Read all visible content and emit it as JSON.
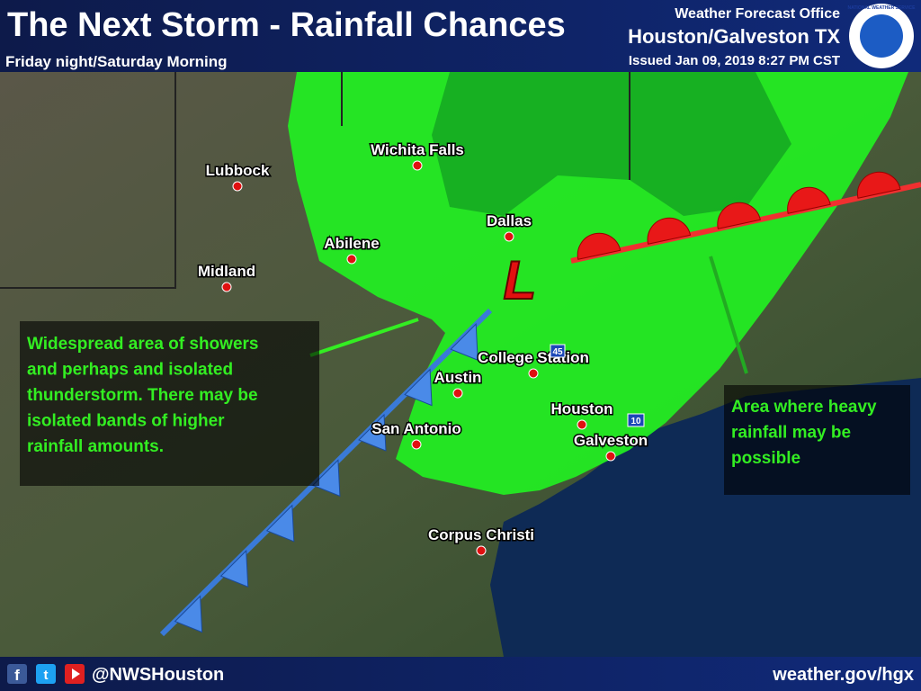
{
  "header": {
    "title": "The Next Storm - Rainfall Chances",
    "subtitle": "Friday night/Saturday Morning",
    "office": "Weather Forecast Office",
    "location": "Houston/Galveston TX",
    "issued": "Issued Jan 09, 2019 8:27 PM CST",
    "logo": "NATIONAL WEATHER SERVICE"
  },
  "map": {
    "low": "L",
    "highways": [
      "45",
      "10"
    ],
    "cities": [
      "Lubbock",
      "Wichita Falls",
      "Dallas",
      "Abilene",
      "Midland",
      "Austin",
      "College Station",
      "Houston",
      "San Antonio",
      "Galveston",
      "Corpus Christi"
    ],
    "annotations": [
      {
        "lines": [
          "Widespread area of showers",
          "and perhaps and isolated",
          "thunderstorm. There may be",
          "isolated bands of higher",
          "rainfall amounts."
        ]
      },
      {
        "lines": [
          "Area where heavy",
          "rainfall may be",
          "possible"
        ]
      }
    ]
  },
  "footer": {
    "social": [
      "f",
      "t"
    ],
    "handle": "@NWSHouston",
    "website": "weather.gov/hgx"
  }
}
